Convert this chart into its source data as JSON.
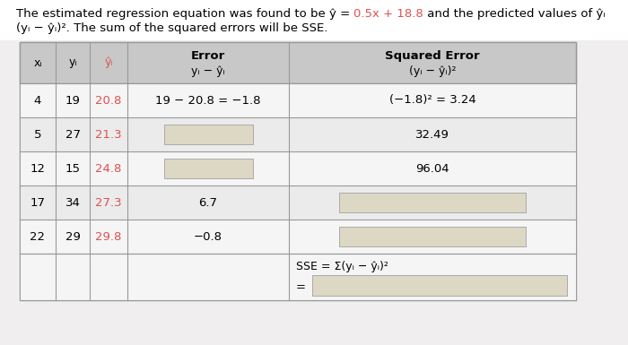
{
  "font_size_title": 9.5,
  "font_size_header": 9.0,
  "font_size_data": 9.5,
  "accent_color": "#e05050",
  "yhat_color": "#e05050",
  "header_bg": "#c8c8c8",
  "row_bg_even": "#f5f5f5",
  "row_bg_odd": "#ebebeb",
  "box_face": "#ddd8c4",
  "box_edge": "#aaaaaa",
  "table_edge": "#999999",
  "bg_color": "#f0eeee",
  "data_rows": [
    {
      "xi": "4",
      "yi": "19",
      "yhat": "20.8",
      "error": "19 − 20.8 = −1.8",
      "error_box": false,
      "sq_error": "(−1.8)² = 3.24",
      "sq_box": false
    },
    {
      "xi": "5",
      "yi": "27",
      "yhat": "21.3",
      "error": "",
      "error_box": true,
      "sq_error": "32.49",
      "sq_box": false
    },
    {
      "xi": "12",
      "yi": "15",
      "yhat": "24.8",
      "error": "",
      "error_box": true,
      "sq_error": "96.04",
      "sq_box": false
    },
    {
      "xi": "17",
      "yi": "34",
      "yhat": "27.3",
      "error": "6.7",
      "error_box": false,
      "sq_error": "",
      "sq_box": true
    },
    {
      "xi": "22",
      "yi": "29",
      "yhat": "29.8",
      "error": "−0.8",
      "error_box": false,
      "sq_error": "",
      "sq_box": true
    }
  ]
}
